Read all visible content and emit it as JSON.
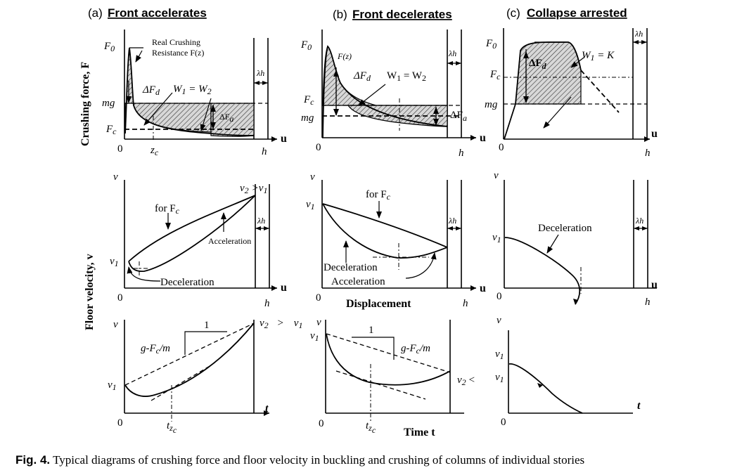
{
  "panels": {
    "a": {
      "letter": "(a)",
      "title": "Front accelerates"
    },
    "b": {
      "letter": "(b)",
      "title": "Front decelerates"
    },
    "c": {
      "letter": "(c)",
      "title": "Collapse arrested"
    }
  },
  "ylabels": {
    "force": "Crushing force, F",
    "velocity": "Floor velocity, v"
  },
  "xlabels": {
    "displacement": "Displacement",
    "time": "Time t"
  },
  "symbols": {
    "F0": "F",
    "F0_sub": "0",
    "Fc": "F",
    "Fc_sub": "c",
    "mg": "mg",
    "u": "u",
    "h": "h",
    "zero": "0",
    "lambda_h": "λh",
    "v": "v",
    "v1": "v",
    "v1_sub": "1",
    "v2": "v",
    "v2_sub": "2",
    "gt": ">",
    "lt": "<",
    "t": "t",
    "zc": "z",
    "zc_sub": "c",
    "tzc": "t",
    "tzc_sub": "z",
    "tzc_subsub": "c",
    "Fz": "F(z)",
    "dFd": "ΔF",
    "dFd_sub": "d",
    "dFa": "ΔF",
    "dFa_sub": "a",
    "W1": "W",
    "W1_sub": "1",
    "eqW2": " = W",
    "W2_sub": "2",
    "eqK": " = K",
    "one": "1",
    "gFcm": "g-F",
    "gFcm_sub": "c",
    "gFcm_end": "/m"
  },
  "annotations": {
    "real_crushing_1": "Real Crushing",
    "real_crushing_2": "Resistance F(z)",
    "for_Fc": "for F",
    "acceleration": "Acceleration",
    "deceleration": "Deceleration"
  },
  "caption": {
    "label": "Fig. 4.",
    "text": " Typical diagrams of crushing force and floor velocity in buckling and crushing of columns of individual stories"
  }
}
